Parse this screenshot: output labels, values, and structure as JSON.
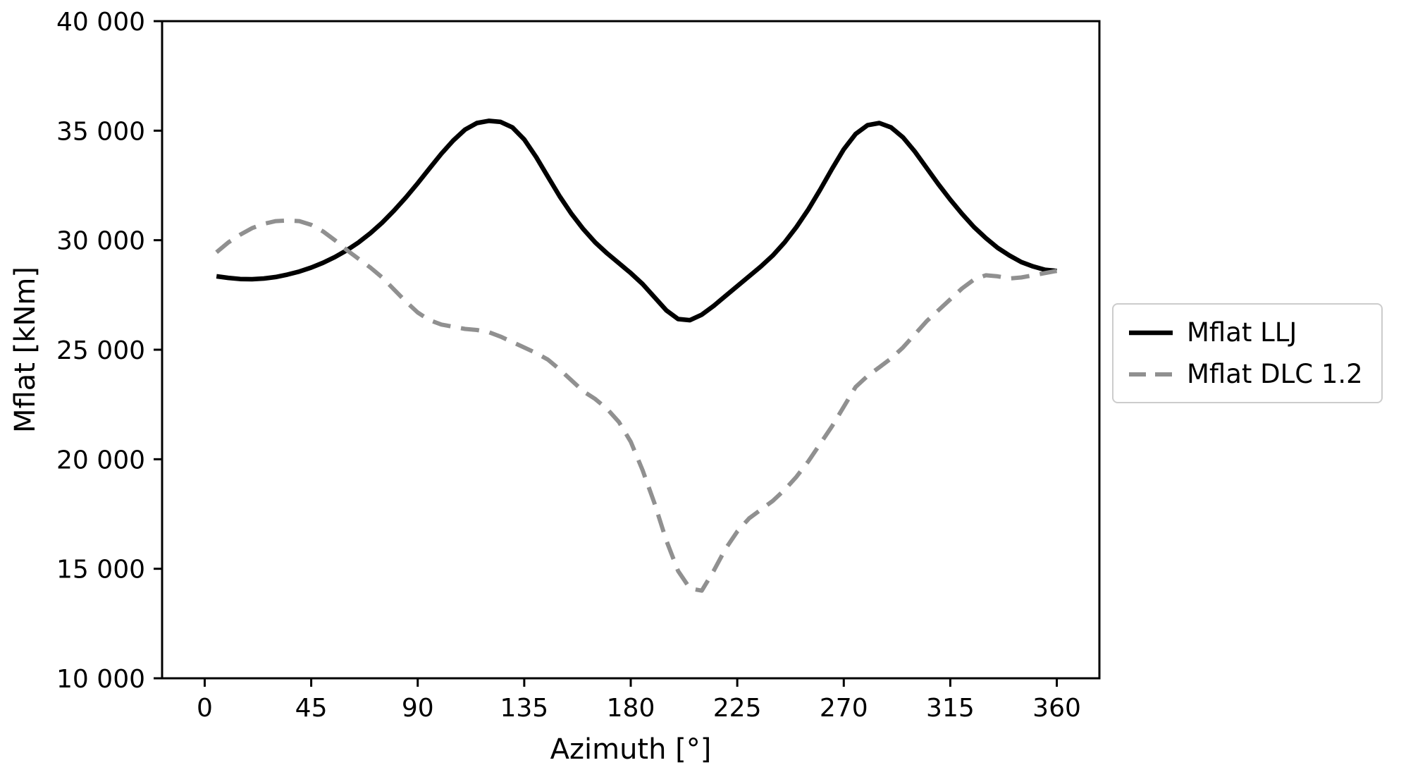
{
  "chart_data": {
    "type": "line",
    "title": "",
    "xlabel": "Azimuth [°]",
    "ylabel": "Mflat [kNm]",
    "xlim": [
      -18,
      378
    ],
    "ylim": [
      10000,
      40000
    ],
    "xticks": [
      0,
      45,
      90,
      135,
      180,
      225,
      270,
      315,
      360
    ],
    "yticks": [
      10000,
      15000,
      20000,
      25000,
      30000,
      35000,
      40000
    ],
    "ytick_labels": [
      "10 000",
      "15 000",
      "20 000",
      "25 000",
      "30 000",
      "35 000",
      "40 000"
    ],
    "grid": false,
    "legend_position": "center-right-outside",
    "series": [
      {
        "name": "Mflat LLJ",
        "color": "#000000",
        "style": "solid",
        "line_width": 6.5,
        "x": [
          5,
          10,
          15,
          20,
          25,
          30,
          35,
          40,
          45,
          50,
          55,
          60,
          65,
          70,
          75,
          80,
          85,
          90,
          95,
          100,
          105,
          110,
          115,
          120,
          125,
          130,
          135,
          140,
          145,
          150,
          155,
          160,
          165,
          170,
          175,
          180,
          185,
          190,
          195,
          200,
          205,
          210,
          215,
          220,
          225,
          230,
          235,
          240,
          245,
          250,
          255,
          260,
          265,
          270,
          275,
          280,
          285,
          290,
          295,
          300,
          305,
          310,
          315,
          320,
          325,
          330,
          335,
          340,
          345,
          350,
          355,
          360
        ],
        "y": [
          28350,
          28280,
          28230,
          28220,
          28250,
          28320,
          28430,
          28570,
          28750,
          28970,
          29230,
          29540,
          29900,
          30320,
          30800,
          31350,
          31950,
          32600,
          33280,
          33950,
          34550,
          35050,
          35350,
          35450,
          35400,
          35150,
          34600,
          33800,
          32900,
          32000,
          31200,
          30500,
          29900,
          29400,
          28950,
          28500,
          28000,
          27400,
          26800,
          26400,
          26350,
          26600,
          27000,
          27450,
          27900,
          28350,
          28800,
          29300,
          29900,
          30600,
          31400,
          32300,
          33250,
          34150,
          34850,
          35250,
          35350,
          35150,
          34700,
          34050,
          33300,
          32550,
          31850,
          31200,
          30600,
          30100,
          29650,
          29300,
          29000,
          28800,
          28650,
          28600
        ]
      },
      {
        "name": "Mflat DLC 1.2",
        "color": "#909090",
        "style": "dashed",
        "line_width": 6,
        "x": [
          5,
          10,
          15,
          20,
          25,
          30,
          35,
          40,
          45,
          50,
          55,
          60,
          65,
          70,
          75,
          80,
          85,
          90,
          95,
          100,
          105,
          110,
          115,
          120,
          125,
          130,
          135,
          140,
          145,
          150,
          155,
          160,
          165,
          170,
          175,
          180,
          185,
          190,
          195,
          200,
          205,
          210,
          215,
          220,
          225,
          230,
          235,
          240,
          245,
          250,
          255,
          260,
          265,
          270,
          275,
          280,
          285,
          290,
          295,
          300,
          305,
          310,
          315,
          320,
          325,
          330,
          335,
          340,
          345,
          350,
          355,
          360
        ],
        "y": [
          29450,
          29900,
          30250,
          30550,
          30750,
          30870,
          30900,
          30870,
          30700,
          30400,
          30000,
          29550,
          29150,
          28750,
          28300,
          27750,
          27200,
          26700,
          26350,
          26150,
          26050,
          25950,
          25900,
          25800,
          25600,
          25350,
          25100,
          24850,
          24550,
          24100,
          23600,
          23100,
          22750,
          22300,
          21700,
          20800,
          19500,
          18000,
          16300,
          14900,
          14100,
          14000,
          14900,
          15900,
          16700,
          17300,
          17700,
          18100,
          18600,
          19200,
          19900,
          20700,
          21500,
          22400,
          23300,
          23800,
          24200,
          24600,
          25100,
          25700,
          26300,
          26800,
          27300,
          27800,
          28200,
          28400,
          28350,
          28250,
          28300,
          28400,
          28500,
          28600
        ]
      }
    ]
  },
  "legend": {
    "items": [
      {
        "label": "Mflat LLJ"
      },
      {
        "label": "Mflat DLC 1.2"
      }
    ]
  }
}
